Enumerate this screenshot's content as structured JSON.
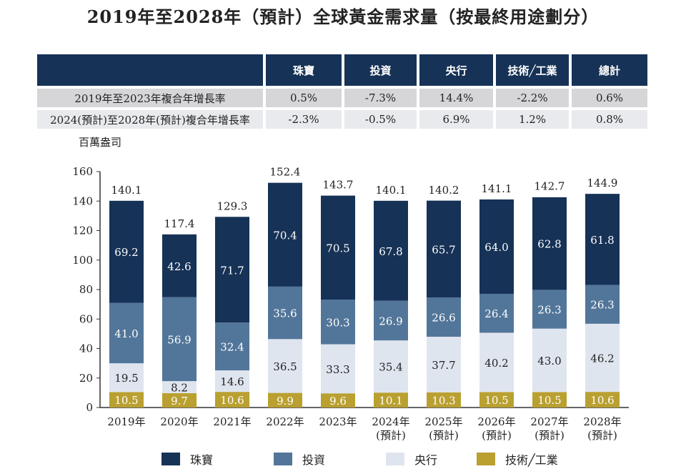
{
  "title": "2019年至2028年（預計）全球黃金需求量（按最終用途劃分）",
  "table": {
    "headers": [
      "",
      "珠寶",
      "投資",
      "央行",
      "技術╱工業",
      "總計"
    ],
    "rows": [
      {
        "label": "2019年至2023年複合年增長率",
        "values": [
          "0.5%",
          "-7.3%",
          "14.4%",
          "-2.2%",
          "0.6%"
        ]
      },
      {
        "label": "2024(預計)至2028年(預計)複合年增長率",
        "values": [
          "-2.3%",
          "-0.5%",
          "6.9%",
          "1.2%",
          "0.8%"
        ]
      }
    ]
  },
  "chart_data": {
    "type": "bar",
    "stacked": true,
    "ylabel": "百萬盎司",
    "ylim": [
      0,
      160
    ],
    "yticks": [
      0,
      20,
      40,
      60,
      80,
      100,
      120,
      140,
      160
    ],
    "grid": false,
    "legend_position": "bottom",
    "categories": [
      [
        "2019年"
      ],
      [
        "2020年"
      ],
      [
        "2021年"
      ],
      [
        "2022年"
      ],
      [
        "2023年"
      ],
      [
        "2024年",
        "(預計)"
      ],
      [
        "2025年",
        "(預計)"
      ],
      [
        "2026年",
        "(預計)"
      ],
      [
        "2027年",
        "(預計)"
      ],
      [
        "2028年",
        "(預計)"
      ]
    ],
    "series": [
      {
        "name": "技術╱工業",
        "color": "#b9a030",
        "values": [
          10.5,
          9.7,
          10.6,
          9.9,
          9.6,
          10.1,
          10.3,
          10.5,
          10.5,
          10.6
        ]
      },
      {
        "name": "央行",
        "color": "#dfe5ef",
        "values": [
          19.5,
          8.2,
          14.6,
          36.5,
          33.3,
          35.4,
          37.7,
          40.2,
          43.0,
          46.2
        ]
      },
      {
        "name": "投資",
        "color": "#52769a",
        "values": [
          41.0,
          56.9,
          32.4,
          35.6,
          30.3,
          26.9,
          26.6,
          26.4,
          26.3,
          26.3
        ]
      },
      {
        "name": "珠寶",
        "color": "#163256",
        "values": [
          69.2,
          42.6,
          71.7,
          70.4,
          70.5,
          67.8,
          65.7,
          64.0,
          62.8,
          61.8
        ]
      }
    ],
    "totals": [
      140.1,
      117.4,
      129.3,
      152.4,
      143.7,
      140.1,
      140.2,
      141.1,
      142.7,
      144.9
    ]
  }
}
